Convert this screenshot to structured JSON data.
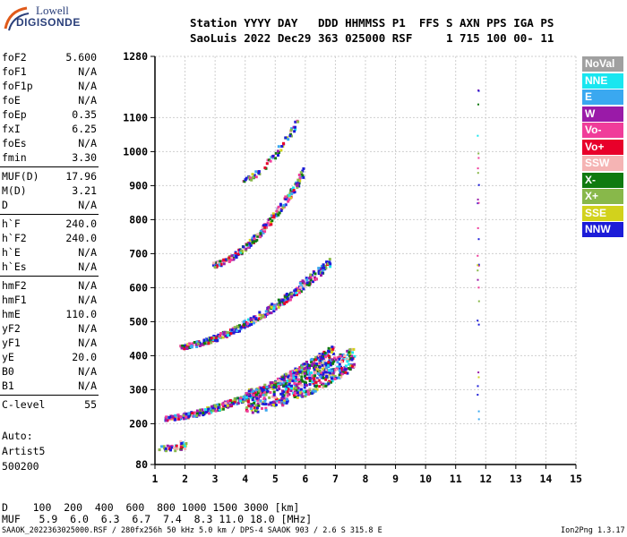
{
  "logo": {
    "top": "Lowell",
    "bottom": "DIGISONDE"
  },
  "header": {
    "line1": "Station YYYY DAY   DDD HHMMSS P1  FFS S AXN PPS IGA PS",
    "line2": "SaoLuis 2022 Dec29 363 025000 RSF     1 715 100 00- 11"
  },
  "params": [
    {
      "label": "foF2",
      "value": "5.600"
    },
    {
      "label": "foF1",
      "value": "N/A"
    },
    {
      "label": "foF1p",
      "value": "N/A"
    },
    {
      "label": "foE",
      "value": "N/A"
    },
    {
      "label": "foEp",
      "value": "0.35"
    },
    {
      "label": "fxI",
      "value": "6.25"
    },
    {
      "label": "foEs",
      "value": "N/A"
    },
    {
      "label": "fmin",
      "value": "3.30"
    },
    {
      "label": "MUF(D)",
      "value": "17.96"
    },
    {
      "label": "M(D)",
      "value": "3.21"
    },
    {
      "label": "D",
      "value": "N/A"
    },
    {
      "label": "h`F",
      "value": "240.0"
    },
    {
      "label": "h`F2",
      "value": "240.0"
    },
    {
      "label": "h`E",
      "value": "N/A"
    },
    {
      "label": "h`Es",
      "value": "N/A"
    },
    {
      "label": "hmF2",
      "value": "N/A"
    },
    {
      "label": "hmF1",
      "value": "N/A"
    },
    {
      "label": "hmE",
      "value": "110.0"
    },
    {
      "label": "yF2",
      "value": "N/A"
    },
    {
      "label": "yF1",
      "value": "N/A"
    },
    {
      "label": "yE",
      "value": "20.0"
    },
    {
      "label": "B0",
      "value": "N/A"
    },
    {
      "label": "B1",
      "value": "N/A"
    },
    {
      "label": "C-level",
      "value": "55"
    }
  ],
  "auto": {
    "line1": "Auto:",
    "line2": "Artist5",
    "line3": "500200"
  },
  "legend": [
    {
      "label": "NoVal",
      "color": "#a0a0a0"
    },
    {
      "label": "NNE",
      "color": "#19e6f0"
    },
    {
      "label": "E",
      "color": "#3aa8f0"
    },
    {
      "label": "W",
      "color": "#9a1aa8"
    },
    {
      "label": "Vo-",
      "color": "#f03c9a"
    },
    {
      "label": "Vo+",
      "color": "#e8002a"
    },
    {
      "label": "SSW",
      "color": "#f5b4b4"
    },
    {
      "label": "X-",
      "color": "#107a10"
    },
    {
      "label": "X+",
      "color": "#88b84a"
    },
    {
      "label": "SSE",
      "color": "#d2d21c"
    },
    {
      "label": "NNW",
      "color": "#1c1cd8"
    }
  ],
  "footer": {
    "d_line": "D    100  200  400  600  800 1000 1500 3000 [km]",
    "muf_line": "MUF   5.9  6.0  6.3  6.7  7.4  8.3 11.0 18.0 [MHz]",
    "file_line": "SAAOK_2022363025000.RSF / 280fx256h 50 kHz 5.0 km / DPS-4 SAAOK 903 / 2.6 S 315.8 E",
    "version": "Ion2Png 1.3.17"
  },
  "chart_data": {
    "type": "scatter",
    "title": "",
    "xlabel": "",
    "ylabel": "",
    "xlim": [
      1,
      15
    ],
    "ylim": [
      80,
      1280
    ],
    "x_ticks": [
      "1",
      "2",
      "3",
      "4",
      "5",
      "6",
      "7",
      "8",
      "9",
      "10",
      "11",
      "12",
      "13",
      "14",
      "15"
    ],
    "y_ticks": [
      "80",
      "200",
      "300",
      "400",
      "500",
      "600",
      "700",
      "800",
      "900",
      "1000",
      "1100",
      "1280"
    ],
    "y_tick_values": [
      80,
      200,
      300,
      400,
      500,
      600,
      700,
      800,
      900,
      1000,
      1100,
      1280
    ],
    "grid": true,
    "traces": [
      {
        "name": "E layer echo",
        "x_range": [
          1.1,
          2.0
        ],
        "height_start": 130,
        "height_end": 140,
        "density": 40
      },
      {
        "name": "F trace",
        "x_range": [
          1.3,
          6.9
        ],
        "height_start": 220,
        "height_end": 420,
        "density": 500
      },
      {
        "name": "F spread",
        "x_range": [
          4.0,
          7.6
        ],
        "height_start": 270,
        "height_end": 400,
        "density": 500
      },
      {
        "name": "2F trace",
        "x_range": [
          1.8,
          6.8
        ],
        "height_start": 430,
        "height_end": 680,
        "density": 350
      },
      {
        "name": "3F trace",
        "x_range": [
          2.9,
          5.9
        ],
        "height_start": 670,
        "height_end": 940,
        "density": 230
      },
      {
        "name": "4F trace",
        "x_range": [
          3.9,
          5.8
        ],
        "height_start": 920,
        "height_end": 1110,
        "density": 60
      },
      {
        "name": "interference column",
        "x_range": [
          11.7,
          11.75
        ],
        "height_start": 130,
        "height_end": 1220,
        "density": 30
      }
    ]
  }
}
